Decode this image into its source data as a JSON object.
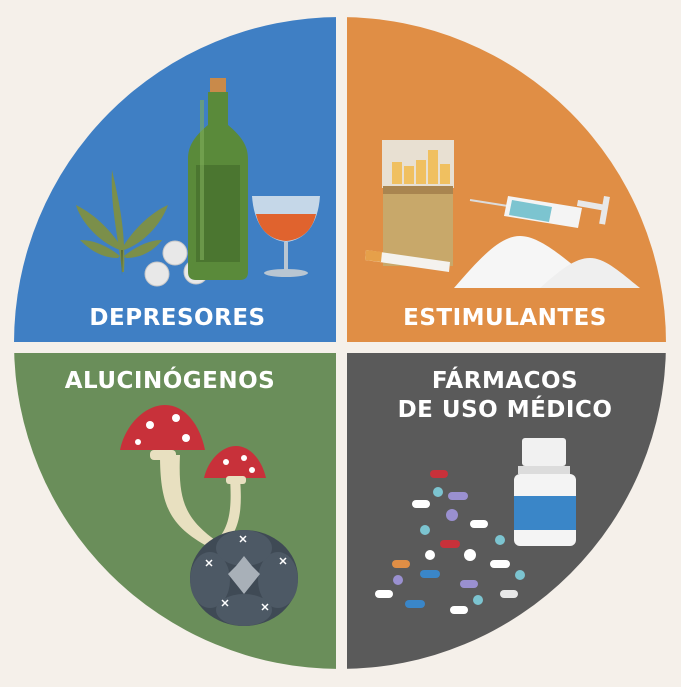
{
  "quadrants": {
    "depresores": {
      "label": "DEPRESORES",
      "color": "#3f7fc4"
    },
    "estimulantes": {
      "label": "ESTIMULANTES",
      "color": "#e08e45"
    },
    "alucinogenos": {
      "label": "ALUCINÓGENOS",
      "color": "#6a8e5a"
    },
    "farmacos": {
      "label_line1": "FÁRMACOS",
      "label_line2": "DE USO MÉDICO",
      "color": "#5a5a5a"
    }
  },
  "background": "#f5f0ea"
}
